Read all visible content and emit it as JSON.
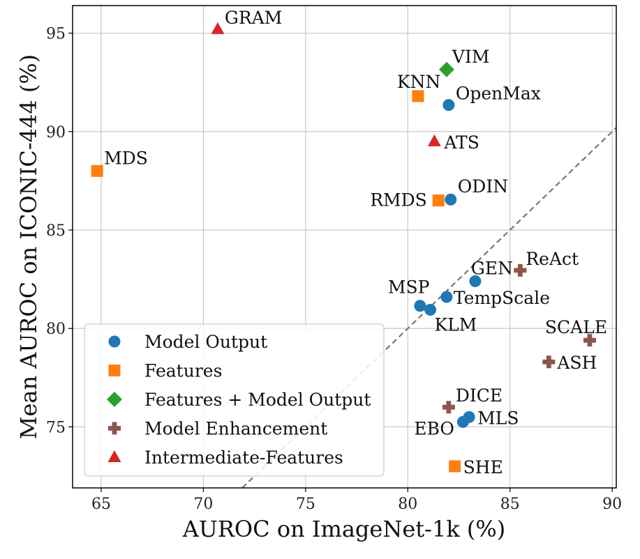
{
  "chart_data": {
    "type": "scatter",
    "xlabel": "AUROC on ImageNet-1k (%)",
    "ylabel": "Mean AUROC on ICONIC-444 (%)",
    "xlim": [
      63.6,
      90.2
    ],
    "ylim": [
      71.9,
      96.4
    ],
    "xticks": [
      65,
      70,
      75,
      80,
      85,
      90
    ],
    "yticks": [
      75,
      80,
      85,
      90,
      95
    ],
    "grid": true,
    "legend_position": "lower-left",
    "diagonal_reference": {
      "style": "dashed",
      "color": "#777777",
      "from": [
        71.9,
        71.9
      ],
      "to": [
        90.2,
        90.2
      ]
    },
    "series": [
      {
        "name": "Model Output",
        "marker": "circle",
        "color": "#1f77b4",
        "points": [
          {
            "label": "OpenMax",
            "x": 82.0,
            "y": 91.35
          },
          {
            "label": "ODIN",
            "x": 82.1,
            "y": 86.55
          },
          {
            "label": "GEN",
            "x": 83.3,
            "y": 82.4
          },
          {
            "label": "TempScale",
            "x": 81.9,
            "y": 81.6
          },
          {
            "label": "MSP",
            "x": 80.6,
            "y": 81.15
          },
          {
            "label": "KLM",
            "x": 81.1,
            "y": 80.95
          },
          {
            "label": "MLS",
            "x": 83.0,
            "y": 75.5
          },
          {
            "label": "EBO",
            "x": 82.7,
            "y": 75.25
          }
        ]
      },
      {
        "name": "Features",
        "marker": "square",
        "color": "#ff7f0e",
        "points": [
          {
            "label": "KNN",
            "x": 80.5,
            "y": 91.8
          },
          {
            "label": "MDS",
            "x": 64.8,
            "y": 88.0
          },
          {
            "label": "RMDS",
            "x": 81.5,
            "y": 86.5
          },
          {
            "label": "SHE",
            "x": 82.3,
            "y": 73.0
          }
        ]
      },
      {
        "name": "Features + Model Output",
        "marker": "diamond",
        "color": "#2ca02c",
        "points": [
          {
            "label": "VIM",
            "x": 81.9,
            "y": 93.15
          }
        ]
      },
      {
        "name": "Model Enhancement",
        "marker": "plus",
        "color": "#8c564b",
        "points": [
          {
            "label": "ReAct",
            "x": 85.5,
            "y": 82.95
          },
          {
            "label": "SCALE",
            "x": 88.9,
            "y": 79.4
          },
          {
            "label": "ASH",
            "x": 86.9,
            "y": 78.3
          },
          {
            "label": "DICE",
            "x": 82.0,
            "y": 76.0
          }
        ]
      },
      {
        "name": "Intermediate-Features",
        "marker": "triangle",
        "color": "#d62728",
        "points": [
          {
            "label": "GRAM",
            "x": 70.7,
            "y": 95.2
          },
          {
            "label": "ATS",
            "x": 81.3,
            "y": 89.5
          }
        ]
      }
    ]
  }
}
